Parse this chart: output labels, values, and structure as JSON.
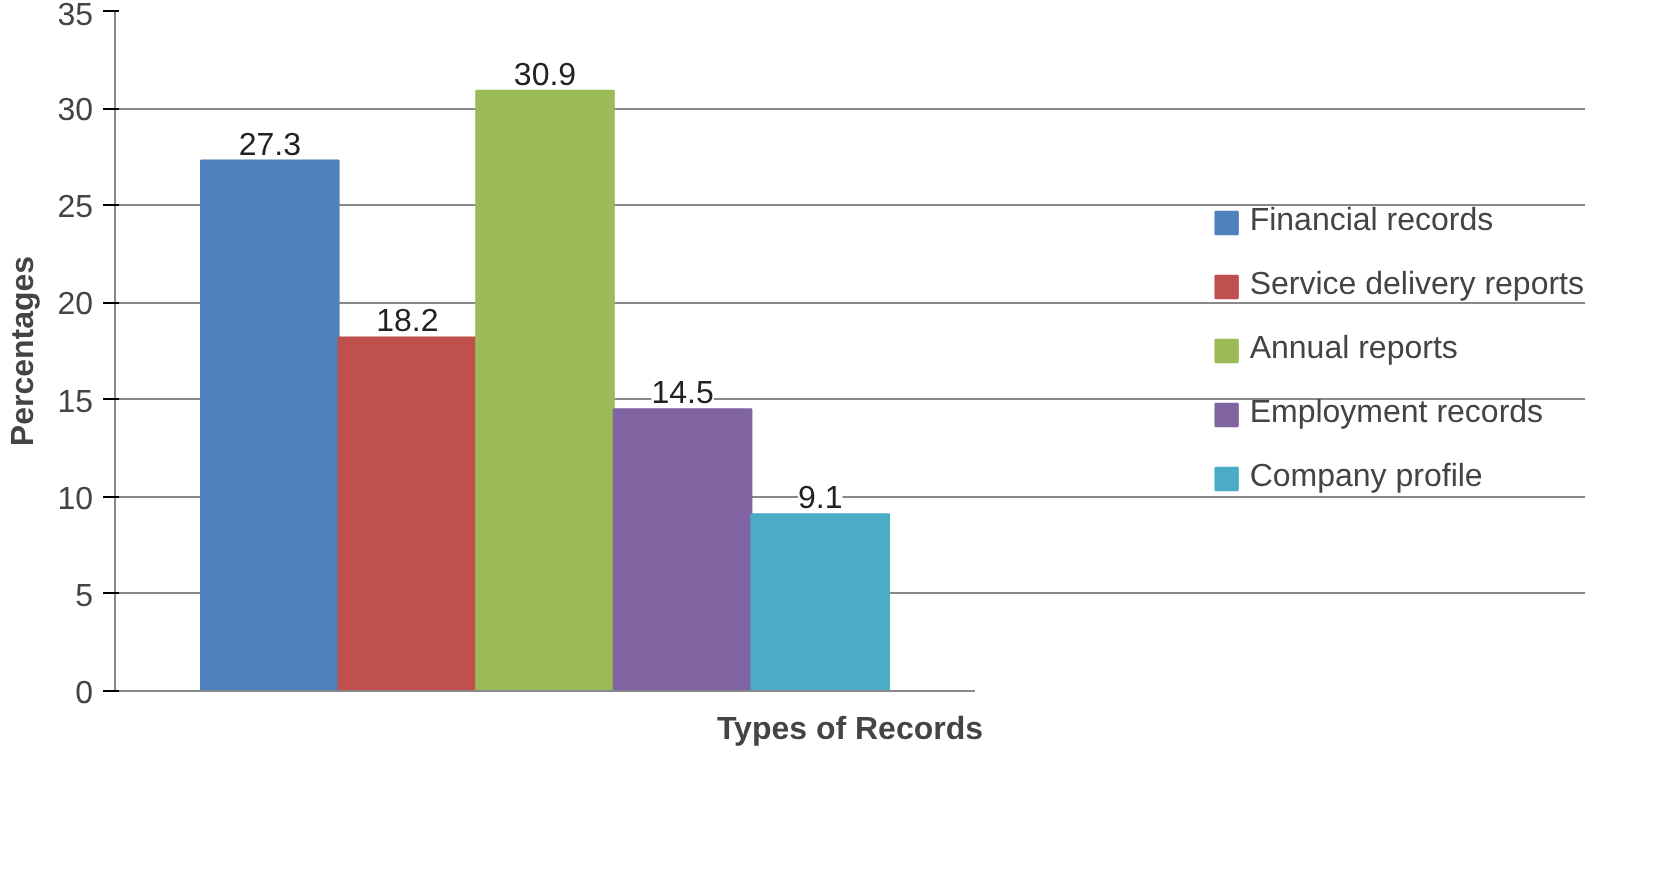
{
  "chart_data": {
    "type": "bar",
    "xlabel": "Types of Records",
    "ylabel": "Percentages",
    "categories": [
      null
    ],
    "series": [
      {
        "name": "Financial records",
        "color": "#4f81bd",
        "values": [
          27.3
        ]
      },
      {
        "name": "Service delivery reports",
        "color": "#c0504d",
        "values": [
          18.2
        ]
      },
      {
        "name": "Annual reports",
        "color": "#9bbb59",
        "values": [
          30.9
        ]
      },
      {
        "name": "Employment records",
        "color": "#8064a2",
        "values": [
          14.5
        ]
      },
      {
        "name": "Company profile",
        "color": "#4bacc6",
        "values": [
          9.1
        ]
      }
    ],
    "ylim": [
      0,
      35
    ],
    "yticks": [
      0,
      5,
      10,
      15,
      20,
      25,
      30,
      35
    ],
    "grid": "y",
    "legend": "right",
    "data_labels": true
  }
}
